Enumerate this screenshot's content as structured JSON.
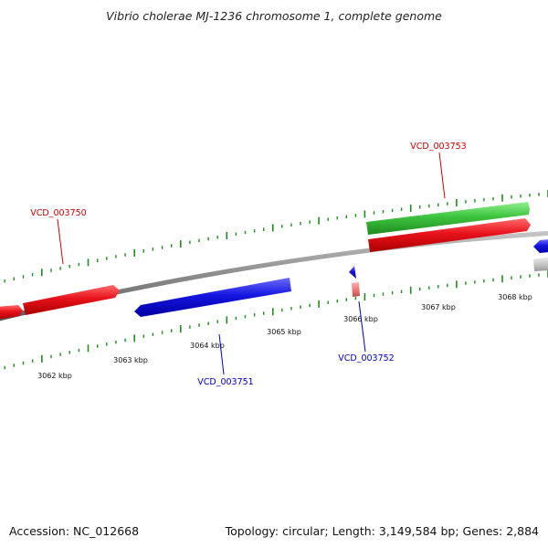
{
  "title": "Vibrio cholerae MJ-1236 chromosome 1, complete genome",
  "footer": {
    "accession": "Accession: NC_012668",
    "summary": "Topology: circular; Length: 3,149,584 bp; Genes: 2,884"
  },
  "colors": {
    "forward_gene": "#e8121b",
    "reverse_gene": "#1515e0",
    "rna_gene": "#3ec43e",
    "other_gene": "#c8c8c8",
    "pseudo_gene": "#ee7b7b",
    "backbone": "#8a8a8a",
    "tick": "#1e8c1e",
    "forward_label": "#cc0000",
    "reverse_label": "#0000bb"
  },
  "ticks": {
    "labels": [
      "3062 kbp",
      "3063 kbp",
      "3064 kbp",
      "3065 kbp",
      "3066 kbp",
      "3067 kbp",
      "3068 kbp"
    ]
  },
  "genes": [
    {
      "id": "VCD_003750",
      "strand": "forward",
      "labeled": true
    },
    {
      "id": "VCD_003751",
      "strand": "reverse",
      "labeled": true
    },
    {
      "id": "VCD_003752",
      "strand": "reverse",
      "labeled": true
    },
    {
      "id": "VCD_003753",
      "strand": "forward",
      "labeled": true
    }
  ]
}
